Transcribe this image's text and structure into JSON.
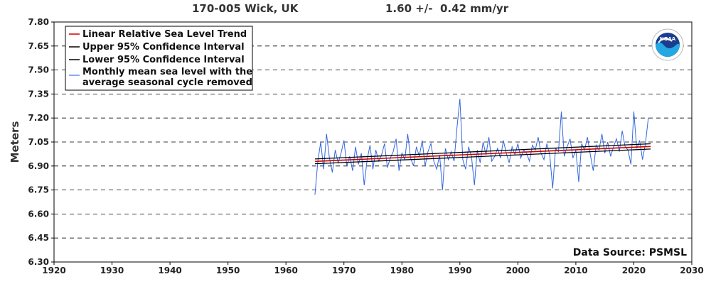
{
  "header": {
    "station": "170-005 Wick, UK",
    "rate": "1.60 +/-  0.42 mm/yr"
  },
  "chart_data": {
    "type": "line",
    "title": "170-005 Wick, UK",
    "subtitle": "1.60 +/-  0.42 mm/yr",
    "xlabel": "",
    "ylabel": "Meters",
    "xlim": [
      1920,
      2030
    ],
    "ylim": [
      6.3,
      7.8
    ],
    "x_ticks": [
      "1920",
      "1930",
      "1940",
      "1950",
      "1960",
      "1970",
      "1980",
      "1990",
      "2000",
      "2010",
      "2020",
      "2030"
    ],
    "y_ticks": [
      "6.30",
      "6.45",
      "6.60",
      "6.75",
      "6.90",
      "7.05",
      "7.20",
      "7.35",
      "7.50",
      "7.65",
      "7.80"
    ],
    "grid": "horizontal dashed",
    "legend_position": "top-left",
    "legend": [
      "Linear Relative Sea Level Trend",
      "Upper 95% Confidence Interval",
      "Lower 95% Confidence Interval",
      "Monthly mean sea level with the",
      "average seasonal cycle removed"
    ],
    "source": "Data Source: PSMSL",
    "colors": {
      "trend": "#cc0000",
      "ci": "#000000",
      "monthly": "#3366dd"
    },
    "series": [
      {
        "name": "Linear Relative Sea Level Trend",
        "x": [
          1965,
          2022.9
        ],
        "y": [
          6.929,
          7.022
        ]
      },
      {
        "name": "Upper 95% Confidence Interval",
        "x": [
          1965,
          2022.9
        ],
        "y": [
          6.944,
          7.039
        ]
      },
      {
        "name": "Lower 95% Confidence Interval",
        "x": [
          1965,
          2022.9
        ],
        "y": [
          6.914,
          7.006
        ]
      },
      {
        "name": "Monthly mean sea level with the average seasonal cycle removed",
        "x": [
          1965.0,
          1965.5,
          1966.0,
          1966.5,
          1967.0,
          1967.5,
          1968.0,
          1968.5,
          1969.0,
          1969.5,
          1970.0,
          1970.5,
          1971.0,
          1971.5,
          1972.0,
          1972.5,
          1973.0,
          1973.5,
          1974.0,
          1974.5,
          1975.0,
          1975.5,
          1976.0,
          1976.5,
          1977.0,
          1977.5,
          1978.0,
          1978.5,
          1979.0,
          1979.5,
          1980.0,
          1980.5,
          1981.0,
          1981.5,
          1982.0,
          1982.5,
          1983.0,
          1983.5,
          1984.0,
          1984.5,
          1985.0,
          1985.5,
          1986.0,
          1986.5,
          1987.0,
          1987.5,
          1988.0,
          1988.5,
          1989.0,
          1989.5,
          1990.0,
          1990.5,
          1991.0,
          1991.5,
          1992.0,
          1992.5,
          1993.0,
          1993.5,
          1994.0,
          1994.5,
          1995.0,
          1995.5,
          1996.0,
          1996.5,
          1997.0,
          1997.5,
          1998.0,
          1998.5,
          1999.0,
          1999.5,
          2000.0,
          2000.5,
          2001.0,
          2001.5,
          2002.0,
          2002.5,
          2003.0,
          2003.5,
          2004.0,
          2004.5,
          2005.0,
          2005.5,
          2006.0,
          2006.5,
          2007.0,
          2007.5,
          2008.0,
          2008.5,
          2009.0,
          2009.5,
          2010.0,
          2010.5,
          2011.0,
          2011.5,
          2012.0,
          2012.5,
          2013.0,
          2013.5,
          2014.0,
          2014.5,
          2015.0,
          2015.5,
          2016.0,
          2016.5,
          2017.0,
          2017.5,
          2018.0,
          2018.5,
          2019.0,
          2019.5,
          2020.0,
          2020.5,
          2021.0,
          2021.5,
          2022.0,
          2022.5
        ],
        "y": [
          6.72,
          6.93,
          7.05,
          6.88,
          7.1,
          6.95,
          6.86,
          7.0,
          6.92,
          6.98,
          7.06,
          6.9,
          6.96,
          6.87,
          7.02,
          6.91,
          6.98,
          6.78,
          6.94,
          7.03,
          6.88,
          7.0,
          6.93,
          6.97,
          7.04,
          6.89,
          6.95,
          6.99,
          7.07,
          6.87,
          6.98,
          6.94,
          7.1,
          6.95,
          6.9,
          7.02,
          6.96,
          7.06,
          6.9,
          6.99,
          7.04,
          6.93,
          6.88,
          6.97,
          6.75,
          7.01,
          6.94,
          6.99,
          6.93,
          7.14,
          7.32,
          6.94,
          6.88,
          7.02,
          6.96,
          6.78,
          7.0,
          6.92,
          7.05,
          6.97,
          7.08,
          6.93,
          6.96,
          7.01,
          6.95,
          7.06,
          6.98,
          6.92,
          7.02,
          6.97,
          7.04,
          6.95,
          7.0,
          6.98,
          6.93,
          7.03,
          7.0,
          7.08,
          6.98,
          6.94,
          7.04,
          6.97,
          6.76,
          7.01,
          6.99,
          7.24,
          6.96,
          7.02,
          7.07,
          6.95,
          7.0,
          6.8,
          7.04,
          7.0,
          7.08,
          6.97,
          6.87,
          7.03,
          7.0,
          7.1,
          6.98,
          7.05,
          6.96,
          7.02,
          7.07,
          6.99,
          7.12,
          7.02,
          7.0,
          6.91,
          7.24,
          7.01,
          7.06,
          6.94,
          7.04,
          7.2
        ]
      }
    ]
  }
}
